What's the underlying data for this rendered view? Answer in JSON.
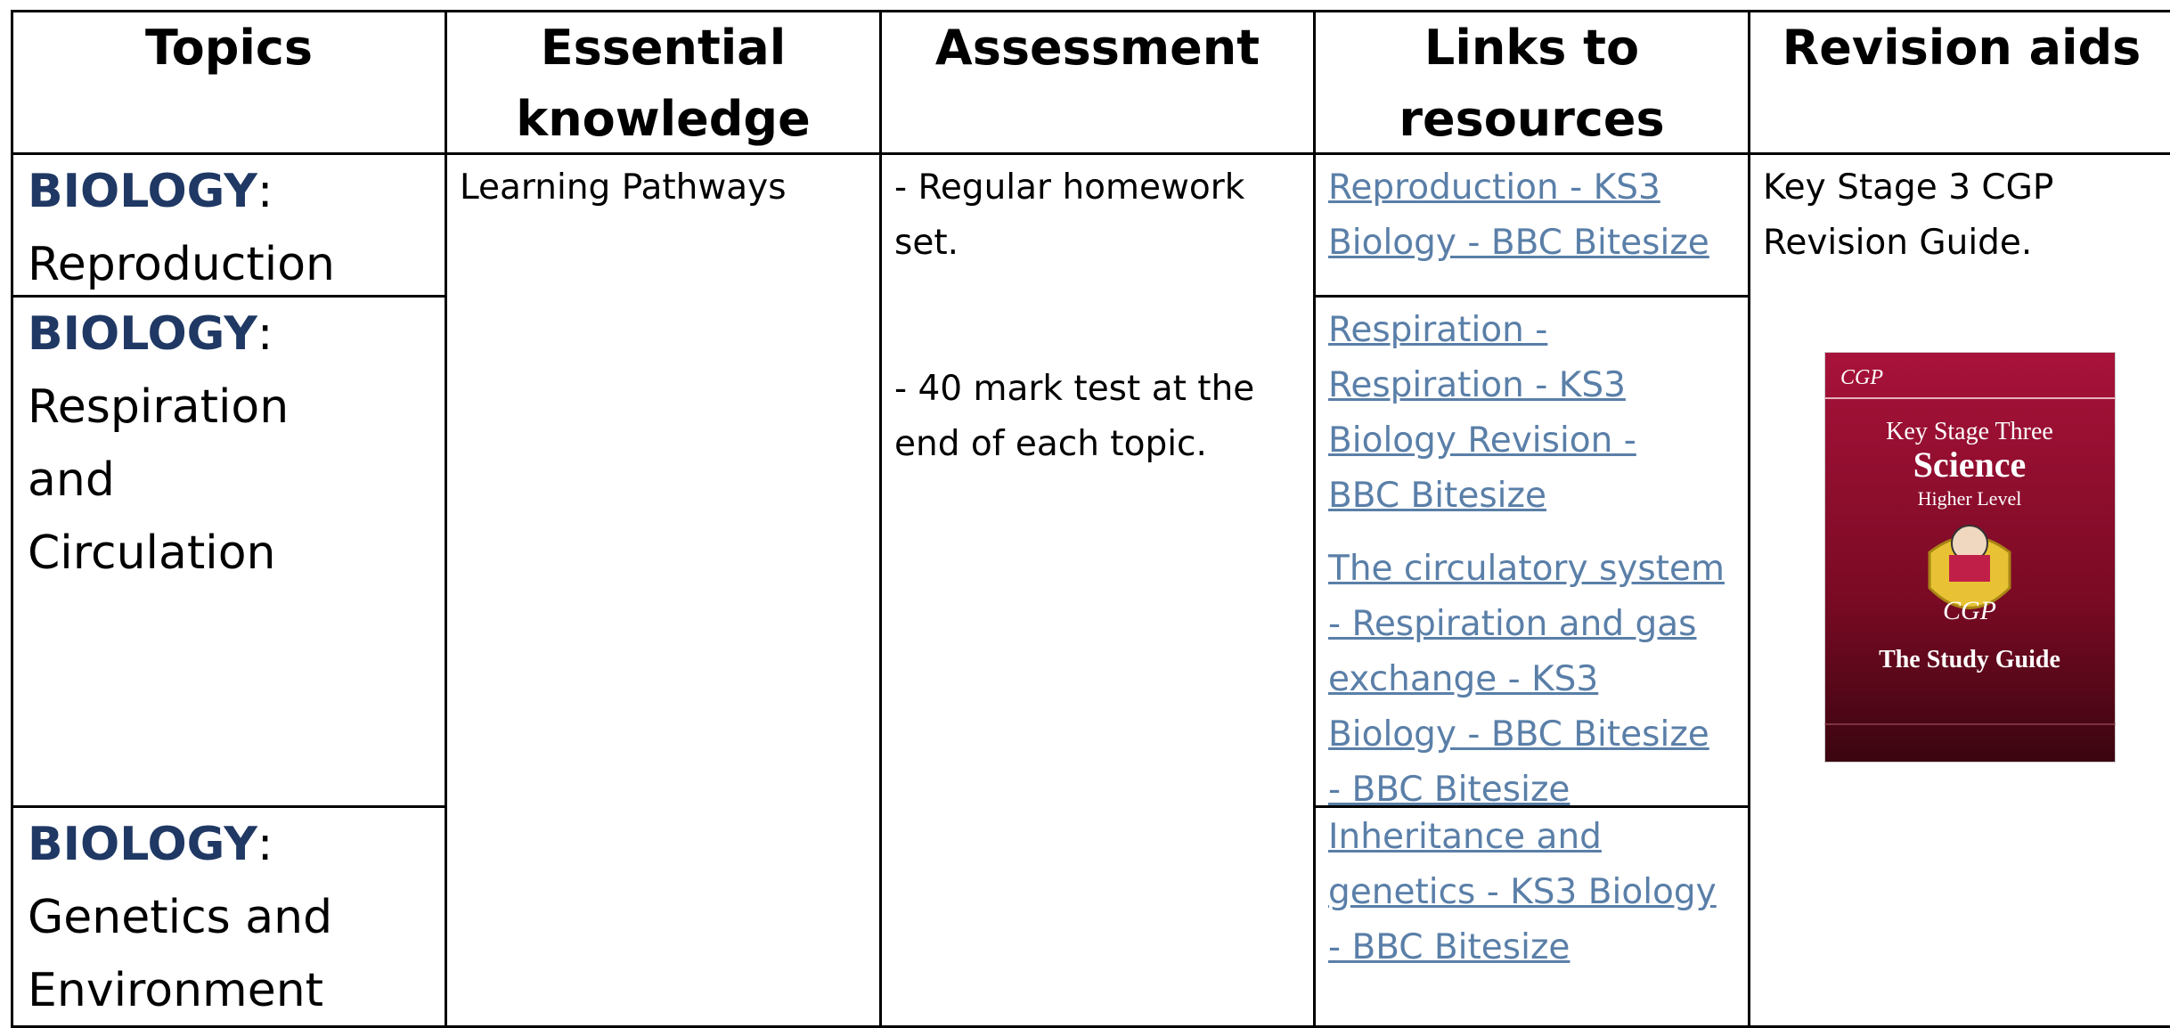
{
  "header": {
    "columns": [
      "Topics",
      "Essential knowledge",
      "Assessment",
      "Links to resources",
      "Revision aids"
    ]
  },
  "topics": [
    {
      "label": "BIOLOGY",
      "suffix": ":",
      "name": "Reproduction"
    },
    {
      "label": "BIOLOGY",
      "suffix": ":",
      "name": "Respiration and Circulation"
    },
    {
      "label": "BIOLOGY",
      "suffix": ":",
      "name": "Genetics and Environment"
    }
  ],
  "essential_knowledge": "Learning Pathways",
  "assessment": [
    "- Regular homework set.",
    "- 40 mark test at the end of each topic."
  ],
  "links": [
    [
      "Reproduction - KS3 Biology - BBC Bitesize"
    ],
    [
      "Respiration - Respiration - KS3 Biology Revision - BBC Bitesize",
      "The circulatory system - Respiration and gas exchange - KS3 Biology - BBC Bitesize - BBC Bitesize"
    ],
    [
      "Inheritance and genetics - KS3 Biology - BBC Bitesize"
    ]
  ],
  "revision_aids": {
    "text": "Key Stage 3 CGP Revision Guide.",
    "book": {
      "brand": "CGP",
      "stage": "Key Stage Three",
      "subject": "Science",
      "level": "Higher Level",
      "mascot": "CGP",
      "subtitle": "The Study Guide"
    }
  }
}
